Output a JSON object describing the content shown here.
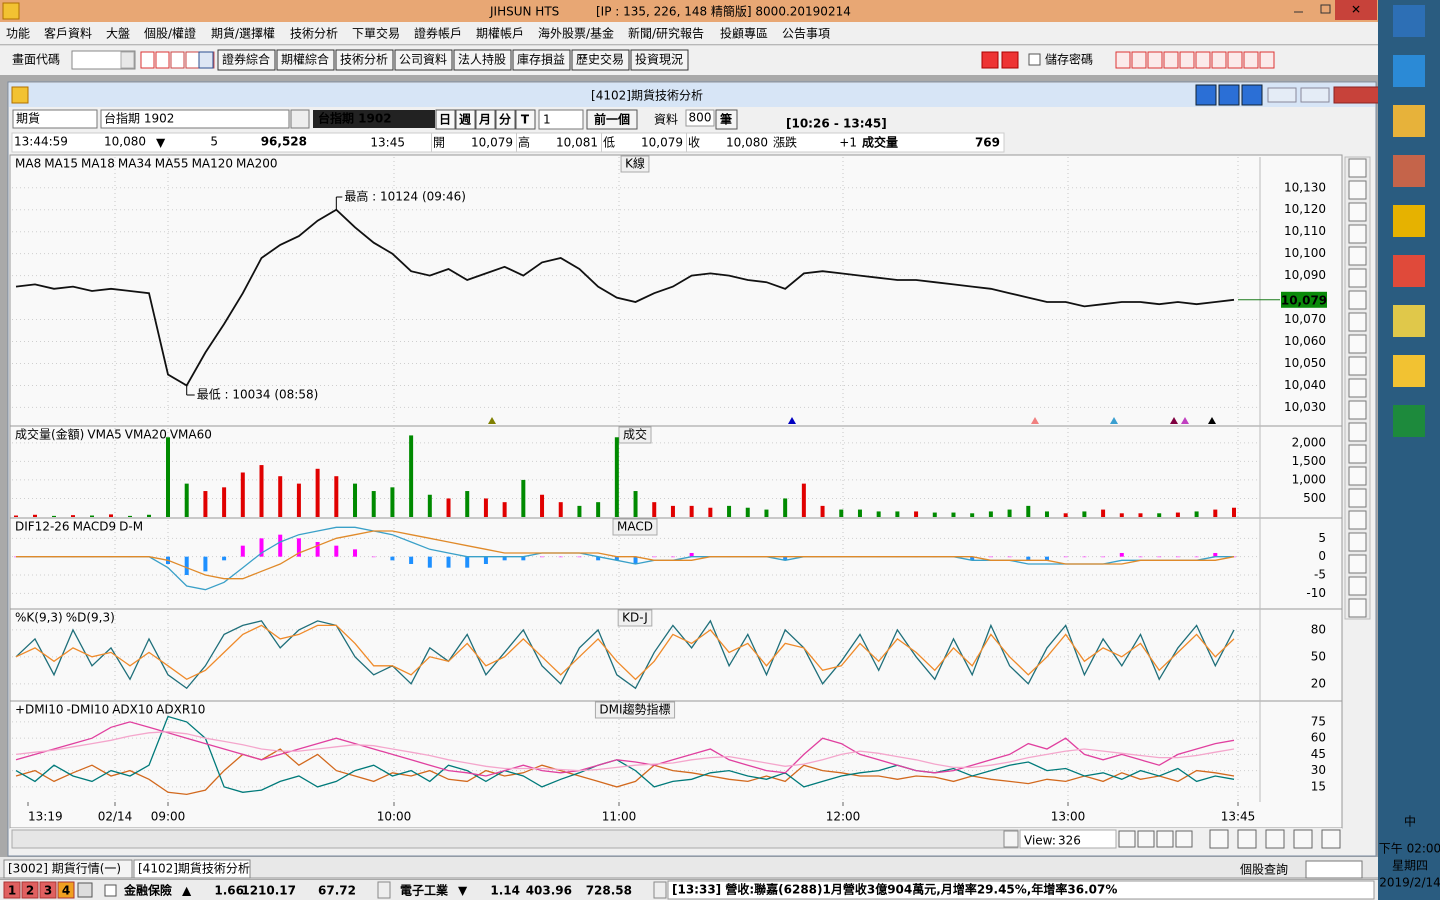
{
  "title_bar": {
    "app": "JIHSUN HTS",
    "info": "[IP : 135, 226, 148 精簡版] 8000.20190214"
  },
  "menu": [
    "功能",
    "客戶資料",
    "大盤",
    "個股/權證",
    "期貨/選擇權",
    "技術分析",
    "下單交易",
    "證券帳戶",
    "期權帳戶",
    "海外股票/基金",
    "新聞/研究報告",
    "投顧專區",
    "公告事項"
  ],
  "toolbar": {
    "code_label": "畫面代碼",
    "buttons": [
      "證券綜合",
      "期權綜合",
      "技術分析",
      "公司資料",
      "法人持股",
      "庫存損益",
      "歷史交易",
      "投資現況"
    ],
    "save_password": "儲存密碼"
  },
  "window": {
    "title": "[4102]期貨技術分析",
    "controls": {
      "market": "期貨",
      "symbol": "台指期 1902",
      "symbol_display": "台指期 1902",
      "periods": [
        "日",
        "週",
        "月",
        "分",
        "T"
      ],
      "interval": "1",
      "prev": "前一個",
      "data_label": "資料",
      "data_count": "800",
      "data_unit": "筆",
      "range": "[10:26 - 13:45]"
    },
    "quote": {
      "time": "13:44:59",
      "price": "10,080",
      "arrow": "▼",
      "change": "5",
      "volume_total": "96,528",
      "bar_time": "13:45",
      "open_label": "開",
      "open": "10,079",
      "high_label": "高",
      "high": "10,081",
      "low_label": "低",
      "low": "10,079",
      "close_label": "收",
      "close": "10,080",
      "chg_label": "漲跌",
      "chg": "+1",
      "vol_label": "成交量",
      "vol": "769"
    }
  },
  "chart_data": [
    {
      "type": "line",
      "title": "K線",
      "color": "#111111",
      "legend": [
        {
          "name": "MA8",
          "color": "#000000"
        },
        {
          "name": "MA15",
          "color": "#c040c0"
        },
        {
          "name": "MA18",
          "color": "#800040"
        },
        {
          "name": "MA34",
          "color": "#3a9fd0"
        },
        {
          "name": "MA55",
          "color": "#f08080"
        },
        {
          "name": "MA120",
          "color": "#0000c0"
        },
        {
          "name": "MA200",
          "color": "#808000"
        }
      ],
      "values": [
        10085,
        10086,
        10084,
        10085,
        10083,
        10084,
        10083,
        10082,
        10045,
        10040,
        10055,
        10068,
        10082,
        10098,
        10104,
        10108,
        10115,
        10120,
        10112,
        10105,
        10100,
        10092,
        10090,
        10093,
        10088,
        10091,
        10094,
        10090,
        10096,
        10098,
        10093,
        10085,
        10080,
        10078,
        10082,
        10085,
        10090,
        10091,
        10090,
        10088,
        10087,
        10084,
        10091,
        10092,
        10091,
        10090,
        10089,
        10088,
        10088,
        10087,
        10086,
        10085,
        10084,
        10082,
        10080,
        10078,
        10078,
        10076,
        10077,
        10078,
        10078,
        10077,
        10078,
        10077,
        10078,
        10079
      ],
      "ylim": [
        10022,
        10144
      ],
      "yticks": [
        {
          "value": 10030,
          "label": "10,030"
        },
        {
          "value": 10040,
          "label": "10,040"
        },
        {
          "value": 10050,
          "label": "10,050"
        },
        {
          "value": 10060,
          "label": "10,060"
        },
        {
          "value": 10070,
          "label": "10,070"
        },
        {
          "value": 10090,
          "label": "10,090"
        },
        {
          "value": 10100,
          "label": "10,100"
        },
        {
          "value": 10110,
          "label": "10,110"
        },
        {
          "value": 10120,
          "label": "10,120"
        },
        {
          "value": 10130,
          "label": "10,130"
        }
      ],
      "last_price": {
        "value": 10079,
        "label": "10,079"
      },
      "high_note": "最高 : 10124 (09:46)",
      "low_note": "最低 : 10034 (08:58)"
    },
    {
      "type": "bar",
      "title": "成交",
      "up_color": "#e00000",
      "down_color": "#008a00",
      "legend": [
        {
          "name": "成交量(金額)",
          "color": "#000000"
        },
        {
          "name": "VMA5",
          "color": "#1e6fd0"
        },
        {
          "name": "VMA20",
          "color": "#e00000"
        },
        {
          "name": "VMA60",
          "color": "#8b0000"
        }
      ],
      "values": [
        40,
        60,
        30,
        50,
        40,
        70,
        30,
        60,
        2150,
        900,
        700,
        800,
        1200,
        1400,
        1100,
        900,
        1300,
        1100,
        900,
        700,
        800,
        2200,
        600,
        500,
        700,
        500,
        400,
        1000,
        600,
        400,
        300,
        400,
        2150,
        700,
        400,
        300,
        300,
        250,
        300,
        250,
        200,
        500,
        900,
        300,
        200,
        200,
        150,
        150,
        150,
        120,
        120,
        100,
        150,
        200,
        300,
        150,
        100,
        150,
        200,
        100,
        100,
        100,
        120,
        150,
        200,
        250
      ],
      "ylim": [
        0,
        2400
      ],
      "yticks": [
        {
          "value": 2000,
          "label": "2,000"
        },
        {
          "value": 1500,
          "label": "1,500"
        },
        {
          "value": 1000,
          "label": "1,000"
        },
        500
      ]
    },
    {
      "type": "macd",
      "title": "MACD",
      "series": [
        {
          "name": "DIF12-26",
          "color": "#3aa0c8",
          "values": [
            0,
            0,
            0,
            0,
            0,
            0,
            0,
            0,
            -3,
            -8,
            -9,
            -7,
            -3,
            1,
            4,
            6,
            7,
            8,
            8,
            7,
            6,
            4,
            2,
            1,
            0,
            0,
            0,
            0,
            1,
            1,
            1,
            0,
            -1,
            -2,
            -1,
            -1,
            0,
            0,
            0,
            0,
            0,
            -1,
            0,
            0,
            0,
            0,
            0,
            0,
            0,
            0,
            0,
            -1,
            -1,
            -1,
            -2,
            -2,
            -2,
            -2,
            -2,
            -1,
            -1,
            -1,
            -1,
            -1,
            0,
            0
          ]
        },
        {
          "name": "MACD9",
          "color": "#e08a2a",
          "values": [
            0,
            0,
            0,
            0,
            0,
            0,
            0,
            0,
            -1,
            -3,
            -5,
            -6,
            -6,
            -4,
            -2,
            1,
            3,
            5,
            6,
            7,
            7,
            6,
            5,
            4,
            3,
            2,
            1,
            1,
            1,
            1,
            1,
            1,
            0,
            0,
            -1,
            -1,
            -1,
            0,
            0,
            0,
            0,
            0,
            0,
            0,
            0,
            0,
            0,
            0,
            0,
            0,
            0,
            0,
            -1,
            -1,
            -1,
            -1,
            -2,
            -2,
            -2,
            -2,
            -1,
            -1,
            -1,
            -1,
            -1,
            0
          ]
        }
      ],
      "histogram": {
        "name": "D-M",
        "color": "#ff00ff",
        "neg_color": "#1e90ff",
        "values": [
          0,
          0,
          0,
          0,
          0,
          0,
          0,
          0,
          -2,
          -5,
          -4,
          -1,
          3,
          5,
          6,
          5,
          4,
          3,
          2,
          0,
          -1,
          -2,
          -3,
          -3,
          -3,
          -2,
          -1,
          -1,
          0,
          0,
          0,
          -1,
          -1,
          -2,
          0,
          0,
          1,
          0,
          0,
          0,
          0,
          -1,
          0,
          0,
          0,
          0,
          0,
          0,
          0,
          0,
          0,
          -1,
          0,
          0,
          -1,
          -1,
          0,
          0,
          0,
          1,
          0,
          0,
          0,
          0,
          1,
          0
        ]
      },
      "ylim": [
        -14,
        10
      ],
      "yticks": [
        5,
        0,
        -5,
        -10
      ]
    },
    {
      "type": "line",
      "title": "KD-J",
      "series": [
        {
          "name": "%K(9,3)",
          "color": "#1f6f7a",
          "values": [
            50,
            70,
            30,
            80,
            40,
            60,
            25,
            70,
            30,
            15,
            40,
            75,
            85,
            90,
            60,
            80,
            90,
            85,
            50,
            30,
            40,
            20,
            60,
            45,
            75,
            30,
            55,
            80,
            40,
            20,
            60,
            80,
            30,
            15,
            55,
            85,
            60,
            90,
            40,
            75,
            30,
            80,
            60,
            20,
            45,
            75,
            35,
            80,
            50,
            25,
            70,
            30,
            85,
            40,
            20,
            60,
            85,
            30,
            70,
            40,
            75,
            25,
            60,
            85,
            40,
            80
          ]
        },
        {
          "name": "%D(9,3)",
          "color": "#ef8a2a",
          "values": [
            50,
            60,
            45,
            60,
            50,
            55,
            40,
            55,
            40,
            25,
            35,
            55,
            75,
            85,
            70,
            75,
            85,
            85,
            65,
            40,
            40,
            30,
            50,
            45,
            65,
            40,
            50,
            70,
            50,
            30,
            50,
            70,
            45,
            25,
            45,
            75,
            65,
            80,
            55,
            65,
            40,
            65,
            60,
            35,
            40,
            65,
            45,
            70,
            55,
            35,
            60,
            40,
            75,
            50,
            30,
            50,
            75,
            45,
            60,
            50,
            65,
            35,
            55,
            75,
            50,
            70
          ]
        }
      ],
      "ylim": [
        2,
        101
      ],
      "yticks": [
        80,
        50,
        20
      ]
    },
    {
      "type": "line",
      "title": "DMI趨勢指標",
      "series": [
        {
          "name": "+DMI10",
          "color": "#d2691e",
          "values": [
            25,
            30,
            20,
            28,
            35,
            25,
            30,
            22,
            10,
            8,
            12,
            30,
            45,
            40,
            50,
            35,
            45,
            30,
            25,
            20,
            28,
            25,
            30,
            22,
            20,
            30,
            25,
            28,
            35,
            30,
            25,
            20,
            15,
            20,
            35,
            30,
            28,
            25,
            22,
            20,
            25,
            20,
            35,
            30,
            28,
            25,
            25,
            22,
            25,
            24,
            20,
            25,
            22,
            20,
            18,
            22,
            20,
            25,
            20,
            28,
            22,
            25,
            20,
            30,
            28,
            25
          ]
        },
        {
          "name": "-DMI10",
          "color": "#007a7a",
          "values": [
            30,
            20,
            35,
            25,
            20,
            30,
            25,
            35,
            80,
            75,
            60,
            15,
            10,
            12,
            20,
            25,
            15,
            20,
            30,
            35,
            25,
            30,
            20,
            35,
            30,
            20,
            30,
            25,
            15,
            22,
            28,
            35,
            40,
            30,
            15,
            20,
            22,
            28,
            30,
            25,
            22,
            28,
            15,
            20,
            25,
            28,
            30,
            35,
            30,
            28,
            32,
            25,
            30,
            35,
            38,
            30,
            32,
            25,
            28,
            22,
            30,
            25,
            32,
            20,
            25,
            22
          ]
        },
        {
          "name": "ADX10",
          "color": "#e0409f",
          "values": [
            40,
            45,
            50,
            55,
            60,
            70,
            75,
            70,
            65,
            60,
            55,
            50,
            45,
            40,
            45,
            50,
            55,
            60,
            55,
            50,
            45,
            40,
            35,
            30,
            28,
            25,
            30,
            35,
            30,
            28,
            30,
            35,
            40,
            38,
            35,
            40,
            45,
            50,
            40,
            35,
            30,
            28,
            45,
            60,
            55,
            45,
            40,
            35,
            30,
            28,
            30,
            35,
            40,
            45,
            55,
            50,
            60,
            45,
            40,
            45,
            40,
            35,
            45,
            50,
            55,
            58
          ]
        },
        {
          "name": "ADXR10",
          "color": "#f4a6cc",
          "values": [
            45,
            47,
            49,
            52,
            55,
            58,
            62,
            65,
            66,
            64,
            60,
            57,
            54,
            50,
            48,
            48,
            50,
            52,
            54,
            53,
            50,
            47,
            44,
            40,
            37,
            34,
            32,
            32,
            32,
            31,
            30,
            31,
            33,
            35,
            36,
            37,
            40,
            42,
            43,
            40,
            37,
            34,
            36,
            40,
            45,
            48,
            46,
            43,
            40,
            36,
            33,
            33,
            35,
            38,
            42,
            45,
            48,
            50,
            48,
            46,
            44,
            42,
            42,
            44,
            47,
            50
          ]
        }
      ],
      "ylim": [
        1,
        92.5
      ],
      "yticks": [
        75,
        60,
        45,
        30,
        15
      ]
    }
  ],
  "x_labels": [
    "13:19",
    "02/14",
    "09:00",
    "10:00",
    "11:00",
    "12:00",
    "13:00",
    "13:45"
  ],
  "view": {
    "label": "View:",
    "value": "326"
  },
  "tabs": [
    "[3002] 期貨行情(一)",
    "[4102]期貨技術分析"
  ],
  "stock_query": "個股查詢",
  "ticker": {
    "pages": [
      "1",
      "2",
      "3",
      "4"
    ],
    "groups": [
      {
        "name": "金融保險",
        "arrow": "▲",
        "change": "1.66",
        "index": "1210.17",
        "amount": "67.72"
      },
      {
        "name": "電子工業",
        "arrow": "▼",
        "change": "1.14",
        "index": "403.96",
        "amount": "728.58"
      }
    ],
    "news": "[13:33] 營收:聯嘉(6288)1月營收3億904萬元,月增率29.45%,年增率36.07%"
  },
  "taskbar": {
    "ime": "中",
    "time": "下午 02:00",
    "weekday": "星期四",
    "date": "2019/2/14"
  }
}
